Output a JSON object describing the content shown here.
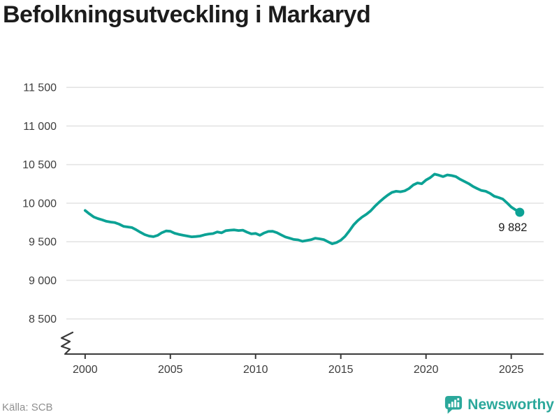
{
  "title": "Befolkningsutveckling i Markaryd",
  "chart_data": {
    "type": "line",
    "title": "Befolkningsutveckling i Markaryd",
    "xlabel": "",
    "ylabel": "",
    "ylim": [
      8500,
      11500
    ],
    "xlim": [
      1998.9,
      2026.9
    ],
    "grid": true,
    "axis_break": true,
    "legend": "none",
    "line_color": "#0ca295",
    "grid_color": "#e4e4e4",
    "axis_color": "#3a3a3a",
    "tick_label_color": "#3d3d3d",
    "end_label": "9 882",
    "end_value": 9882,
    "y_ticks": [
      {
        "v": 8500,
        "label": "8 500"
      },
      {
        "v": 9000,
        "label": "9 000"
      },
      {
        "v": 9500,
        "label": "9 500"
      },
      {
        "v": 10000,
        "label": "10 000"
      },
      {
        "v": 10500,
        "label": "10 500"
      },
      {
        "v": 11000,
        "label": "11 000"
      },
      {
        "v": 11500,
        "label": "11 500"
      }
    ],
    "x_ticks": [
      {
        "v": 2000,
        "label": "2000"
      },
      {
        "v": 2005,
        "label": "2005"
      },
      {
        "v": 2010,
        "label": "2010"
      },
      {
        "v": 2015,
        "label": "2015"
      },
      {
        "v": 2020,
        "label": "2020"
      },
      {
        "v": 2025,
        "label": "2025"
      }
    ],
    "series": [
      {
        "name": "Befolkning",
        "points": [
          [
            2000,
            9905
          ],
          [
            2000.25,
            9862
          ],
          [
            2000.5,
            9822
          ],
          [
            2000.75,
            9800
          ],
          [
            2001,
            9784
          ],
          [
            2001.25,
            9765
          ],
          [
            2001.5,
            9755
          ],
          [
            2001.75,
            9748
          ],
          [
            2002,
            9728
          ],
          [
            2002.25,
            9700
          ],
          [
            2002.5,
            9692
          ],
          [
            2002.75,
            9684
          ],
          [
            2003,
            9655
          ],
          [
            2003.25,
            9622
          ],
          [
            2003.5,
            9592
          ],
          [
            2003.75,
            9574
          ],
          [
            2004,
            9566
          ],
          [
            2004.25,
            9582
          ],
          [
            2004.5,
            9618
          ],
          [
            2004.75,
            9640
          ],
          [
            2005,
            9636
          ],
          [
            2005.25,
            9610
          ],
          [
            2005.5,
            9596
          ],
          [
            2005.75,
            9584
          ],
          [
            2006,
            9574
          ],
          [
            2006.25,
            9564
          ],
          [
            2006.5,
            9568
          ],
          [
            2006.75,
            9574
          ],
          [
            2007,
            9590
          ],
          [
            2007.25,
            9600
          ],
          [
            2007.5,
            9606
          ],
          [
            2007.75,
            9628
          ],
          [
            2008,
            9616
          ],
          [
            2008.25,
            9644
          ],
          [
            2008.5,
            9650
          ],
          [
            2008.75,
            9654
          ],
          [
            2009,
            9646
          ],
          [
            2009.25,
            9650
          ],
          [
            2009.5,
            9624
          ],
          [
            2009.75,
            9602
          ],
          [
            2010,
            9608
          ],
          [
            2010.25,
            9584
          ],
          [
            2010.5,
            9614
          ],
          [
            2010.75,
            9634
          ],
          [
            2011,
            9636
          ],
          [
            2011.25,
            9618
          ],
          [
            2011.5,
            9590
          ],
          [
            2011.75,
            9562
          ],
          [
            2012,
            9546
          ],
          [
            2012.25,
            9530
          ],
          [
            2012.5,
            9524
          ],
          [
            2012.75,
            9506
          ],
          [
            2013,
            9516
          ],
          [
            2013.25,
            9526
          ],
          [
            2013.5,
            9546
          ],
          [
            2013.75,
            9538
          ],
          [
            2014,
            9528
          ],
          [
            2014.25,
            9500
          ],
          [
            2014.5,
            9474
          ],
          [
            2014.75,
            9490
          ],
          [
            2015,
            9520
          ],
          [
            2015.25,
            9570
          ],
          [
            2015.5,
            9640
          ],
          [
            2015.75,
            9718
          ],
          [
            2016,
            9775
          ],
          [
            2016.25,
            9820
          ],
          [
            2016.5,
            9856
          ],
          [
            2016.75,
            9900
          ],
          [
            2017,
            9960
          ],
          [
            2017.25,
            10012
          ],
          [
            2017.5,
            10060
          ],
          [
            2017.75,
            10104
          ],
          [
            2018,
            10140
          ],
          [
            2018.25,
            10154
          ],
          [
            2018.5,
            10148
          ],
          [
            2018.75,
            10160
          ],
          [
            2019,
            10190
          ],
          [
            2019.25,
            10236
          ],
          [
            2019.5,
            10262
          ],
          [
            2019.75,
            10252
          ],
          [
            2020,
            10300
          ],
          [
            2020.25,
            10332
          ],
          [
            2020.5,
            10376
          ],
          [
            2020.75,
            10362
          ],
          [
            2021,
            10344
          ],
          [
            2021.25,
            10366
          ],
          [
            2021.5,
            10358
          ],
          [
            2021.75,
            10344
          ],
          [
            2022,
            10310
          ],
          [
            2022.25,
            10282
          ],
          [
            2022.5,
            10254
          ],
          [
            2022.75,
            10218
          ],
          [
            2023,
            10190
          ],
          [
            2023.25,
            10164
          ],
          [
            2023.5,
            10154
          ],
          [
            2023.75,
            10128
          ],
          [
            2024,
            10090
          ],
          [
            2024.25,
            10074
          ],
          [
            2024.5,
            10054
          ],
          [
            2024.75,
            10004
          ],
          [
            2025,
            9950
          ],
          [
            2025.25,
            9914
          ],
          [
            2025.5,
            9882
          ]
        ]
      }
    ]
  },
  "footer": {
    "source": "Källa: SCB",
    "brand": "Newsworthy",
    "brand_color": "#2ba89b"
  }
}
